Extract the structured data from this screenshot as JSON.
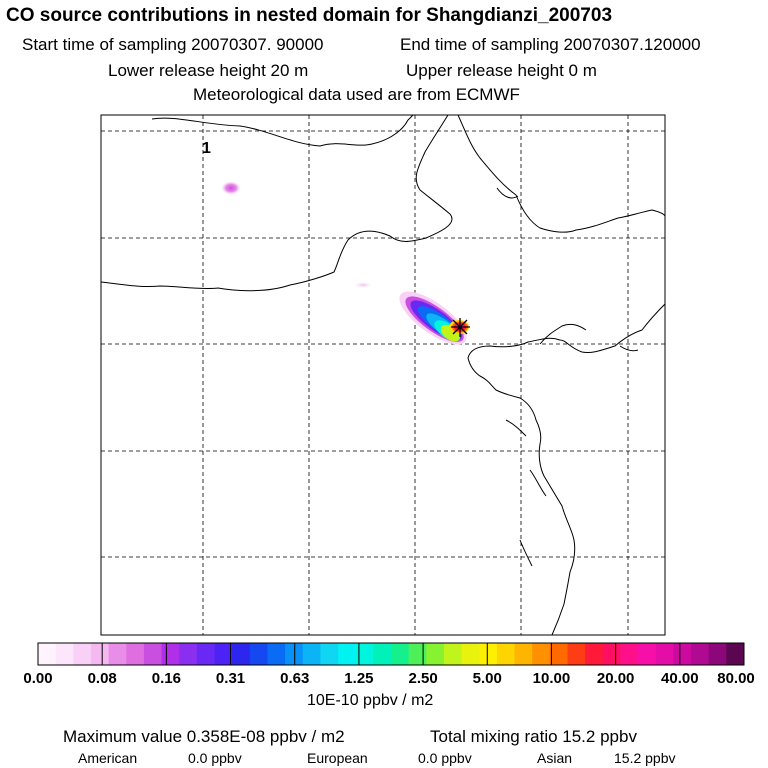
{
  "header": {
    "title": "CO  source contributions in nested domain for Shangdianzi_200703",
    "start_time_label": "Start time of sampling 20070307. 90000",
    "end_time_label": "End time of sampling 20070307.120000",
    "lower_release_label": "Lower release height   20 m",
    "upper_release_label": "Upper release height    0 m",
    "met_data_label": "Meteorological data used are from ECMWF"
  },
  "map": {
    "annotation": "1",
    "receptor_marker": "station-star"
  },
  "colorbar": {
    "labels": [
      "0.00",
      "0.08",
      "0.16",
      "0.31",
      "0.63",
      "1.25",
      "2.50",
      "5.00",
      "10.00",
      "20.00",
      "40.00",
      "80.00"
    ],
    "units": "10E-10 ppbv / m2",
    "colors": [
      "#fff4fd",
      "#fde6fb",
      "#f9d0f6",
      "#f3b9f0",
      "#e98ee8",
      "#df6ee0",
      "#c94fe0",
      "#b02fe8",
      "#8a2ff0",
      "#6a28f5",
      "#4d23f5",
      "#2c26ee",
      "#1648f2",
      "#0a6cf4",
      "#0891f6",
      "#0cb4f6",
      "#10d6f4",
      "#00f2f2",
      "#00f5de",
      "#00f2b8",
      "#14f08c",
      "#4ef05a",
      "#86f230",
      "#c0f41a",
      "#e8f20c",
      "#fff000",
      "#ffd500",
      "#ffb400",
      "#ff9000",
      "#ff6a00",
      "#ff3d14",
      "#ff1a3a",
      "#ff0f62",
      "#ff108a",
      "#f60fa8",
      "#e40ea6",
      "#cc0aa0",
      "#b00a92",
      "#8c087a",
      "#5a0650"
    ]
  },
  "summary": {
    "max_value_label": "Maximum value  0.358E-08 ppbv / m2",
    "total_mixing_label": "Total mixing ratio       15.2 ppbv",
    "regions": [
      {
        "name": "American",
        "value": "0.0 ppbv"
      },
      {
        "name": "European",
        "value": "0.0 ppbv"
      },
      {
        "name": "Asian",
        "value": "15.2 ppbv"
      }
    ]
  }
}
